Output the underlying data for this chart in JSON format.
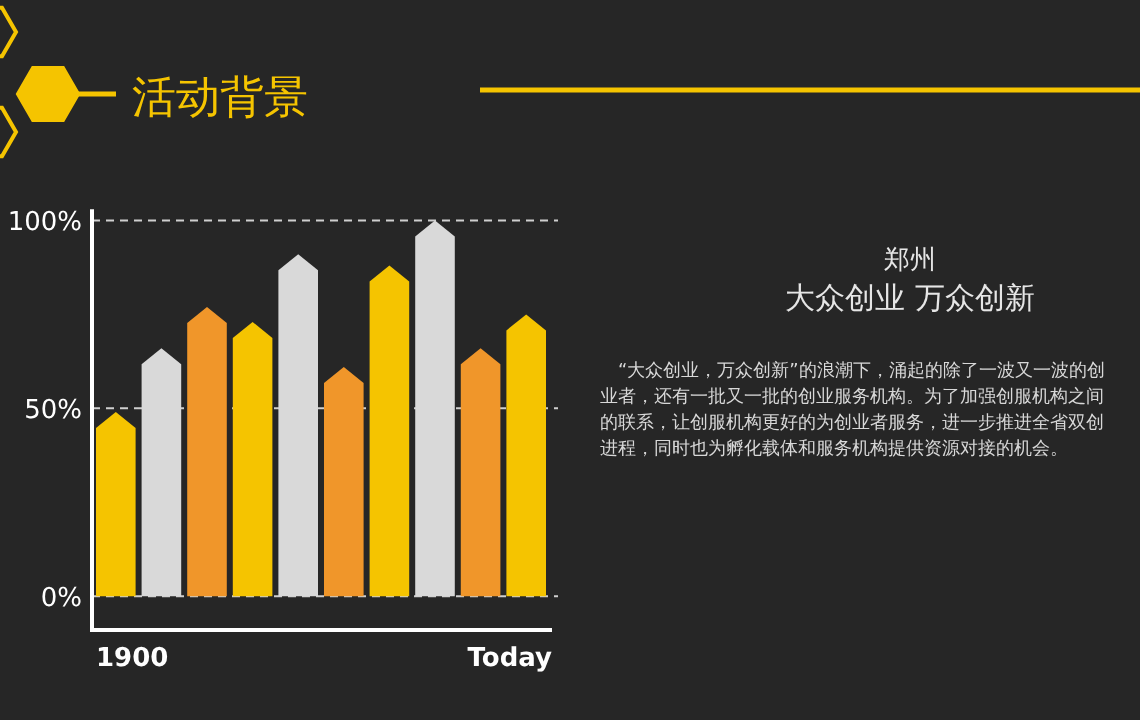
{
  "chart_data": {
    "type": "bar",
    "title": "活动背景",
    "categories": [
      "1900",
      null,
      null,
      null,
      null,
      null,
      null,
      null,
      null,
      "Today"
    ],
    "values": [
      49,
      66,
      77,
      73,
      91,
      61,
      88,
      100,
      66,
      75
    ],
    "colors": [
      "#f5c400",
      "#d9d9d9",
      "#f0962a",
      "#f5c400",
      "#d9d9d9",
      "#f0962a",
      "#f5c400",
      "#d9d9d9",
      "#f0962a",
      "#f5c400"
    ],
    "ylim": [
      -9,
      103
    ],
    "yticks": [
      {
        "value": 0,
        "label": "0%"
      },
      {
        "value": 50,
        "label": "50%"
      },
      {
        "value": 100,
        "label": "100%"
      }
    ],
    "grid": "y",
    "annotations": [
      "郑州",
      "大众创业 万众创新",
      "“大众创业，万众创新”的浪潮下，涌起的除了一波又一波的创业者，还有一批又一批的创业服务机构。为了加强创服机构之间的联系，让创服机构更好的为创业者服务，进一步推进全省双创进程，同时也为孵化载体和服务机构提供资源对接的机会。"
    ]
  }
}
